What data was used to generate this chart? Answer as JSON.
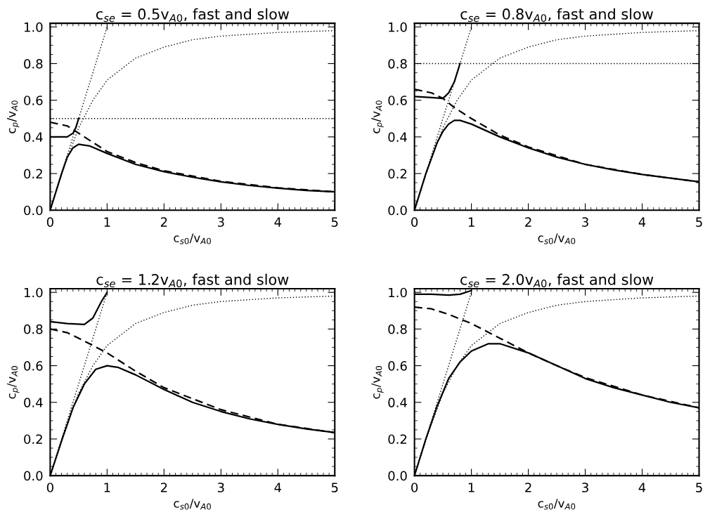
{
  "chart_data": [
    {
      "type": "line",
      "title": "c$_{se}$ = 0.5v$_{A0}$, fast and slow",
      "xlabel": "c$_{s0}$/v$_{A0}$",
      "ylabel": "c$_{p}$/v$_{A0}$",
      "xlim": [
        0,
        5
      ],
      "xticks": [
        0,
        1,
        2,
        3,
        4,
        5
      ],
      "ylim": [
        0,
        1.02
      ],
      "yticks": [
        {
          "value": 0,
          "label": "0.0"
        },
        {
          "value": 0.2,
          "label": "0.2"
        },
        {
          "value": 0.4,
          "label": "0.4"
        },
        {
          "value": 0.6,
          "label": "0.6"
        },
        {
          "value": 0.8,
          "label": "0.8"
        },
        {
          "value": 1,
          "label": "1.0"
        }
      ],
      "grid": false,
      "marker": "none",
      "ref_lines": [
        {
          "axis": "y",
          "value": 0.5,
          "color": "#000000",
          "line_style": "dotted"
        }
      ],
      "series": [
        {
          "color": "#000000",
          "line_style": "solid",
          "x": [
            0,
            0.3,
            0.4,
            0.45,
            0.5
          ],
          "values": [
            0.4,
            0.4,
            0.42,
            0.45,
            0.5
          ]
        },
        {
          "color": "#000000",
          "line_style": "solid",
          "x": [
            0,
            0.1,
            0.2,
            0.3,
            0.4,
            0.5,
            0.7,
            1,
            1.5,
            2,
            2.5,
            3,
            3.5,
            4,
            4.5,
            5
          ],
          "values": [
            0,
            0.1,
            0.2,
            0.29,
            0.34,
            0.36,
            0.35,
            0.31,
            0.25,
            0.21,
            0.18,
            0.155,
            0.135,
            0.12,
            0.108,
            0.1
          ]
        },
        {
          "color": "#000000",
          "line_style": "dashed",
          "x": [
            0,
            0.3,
            0.5,
            0.7,
            1,
            1.5,
            2,
            3,
            4,
            5
          ],
          "values": [
            0.48,
            0.46,
            0.42,
            0.38,
            0.32,
            0.26,
            0.215,
            0.158,
            0.122,
            0.1
          ]
        },
        {
          "color": "#000000",
          "line_style": "dotted",
          "x": [
            0,
            1
          ],
          "values": [
            0,
            1
          ]
        },
        {
          "color": "#000000",
          "line_style": "dotted",
          "x": [
            0,
            0.25,
            0.5,
            0.75,
            1,
            1.5,
            2,
            2.5,
            3,
            4,
            5
          ],
          "values": [
            0,
            0.24,
            0.45,
            0.6,
            0.71,
            0.83,
            0.89,
            0.93,
            0.95,
            0.97,
            0.98
          ]
        }
      ]
    },
    {
      "type": "line",
      "title": "c$_{se}$ = 0.8v$_{A0}$, fast and slow",
      "xlabel": "c$_{s0}$/v$_{A0}$",
      "ylabel": "c$_{p}$/v$_{A0}$",
      "xlim": [
        0,
        5
      ],
      "xticks": [
        0,
        1,
        2,
        3,
        4,
        5
      ],
      "ylim": [
        0,
        1.02
      ],
      "yticks": [
        {
          "value": 0,
          "label": "0.0"
        },
        {
          "value": 0.2,
          "label": "0.2"
        },
        {
          "value": 0.4,
          "label": "0.4"
        },
        {
          "value": 0.6,
          "label": "0.6"
        },
        {
          "value": 0.8,
          "label": "0.8"
        },
        {
          "value": 1,
          "label": "1.0"
        }
      ],
      "grid": false,
      "marker": "none",
      "ref_lines": [
        {
          "axis": "y",
          "value": 0.8,
          "color": "#000000",
          "line_style": "dotted"
        }
      ],
      "series": [
        {
          "color": "#000000",
          "line_style": "solid",
          "x": [
            0,
            0.3,
            0.5,
            0.6,
            0.7,
            0.8
          ],
          "values": [
            0.62,
            0.615,
            0.61,
            0.64,
            0.7,
            0.8
          ]
        },
        {
          "color": "#000000",
          "line_style": "solid",
          "x": [
            0,
            0.2,
            0.4,
            0.5,
            0.6,
            0.7,
            0.8,
            1,
            1.5,
            2,
            2.5,
            3,
            3.5,
            4,
            4.5,
            5
          ],
          "values": [
            0,
            0.2,
            0.37,
            0.43,
            0.47,
            0.49,
            0.49,
            0.47,
            0.4,
            0.34,
            0.29,
            0.25,
            0.22,
            0.195,
            0.175,
            0.155
          ]
        },
        {
          "color": "#000000",
          "line_style": "dashed",
          "x": [
            0,
            0.3,
            0.5,
            0.7,
            1,
            1.5,
            2,
            3,
            4,
            5
          ],
          "values": [
            0.66,
            0.64,
            0.61,
            0.56,
            0.5,
            0.41,
            0.345,
            0.25,
            0.195,
            0.155
          ]
        },
        {
          "color": "#000000",
          "line_style": "dotted",
          "x": [
            0,
            1
          ],
          "values": [
            0,
            1
          ]
        },
        {
          "color": "#000000",
          "line_style": "dotted",
          "x": [
            0,
            0.25,
            0.5,
            0.75,
            1,
            1.5,
            2,
            2.5,
            3,
            4,
            5
          ],
          "values": [
            0,
            0.24,
            0.45,
            0.6,
            0.71,
            0.83,
            0.89,
            0.93,
            0.95,
            0.97,
            0.98
          ]
        }
      ]
    },
    {
      "type": "line",
      "title": "c$_{se}$ = 1.2v$_{A0}$, fast and slow",
      "xlabel": "c$_{s0}$/v$_{A0}$",
      "ylabel": "c$_{p}$/v$_{A0}$",
      "xlim": [
        0,
        5
      ],
      "xticks": [
        0,
        1,
        2,
        3,
        4,
        5
      ],
      "ylim": [
        0,
        1.02
      ],
      "yticks": [
        {
          "value": 0,
          "label": "0.0"
        },
        {
          "value": 0.2,
          "label": "0.2"
        },
        {
          "value": 0.4,
          "label": "0.4"
        },
        {
          "value": 0.6,
          "label": "0.6"
        },
        {
          "value": 0.8,
          "label": "0.8"
        },
        {
          "value": 1,
          "label": "1.0"
        }
      ],
      "grid": false,
      "marker": "none",
      "series": [
        {
          "color": "#000000",
          "line_style": "solid",
          "x": [
            0,
            0.3,
            0.6,
            0.75,
            0.9,
            1
          ],
          "values": [
            0.84,
            0.83,
            0.825,
            0.86,
            0.95,
            1
          ]
        },
        {
          "color": "#000000",
          "line_style": "solid",
          "x": [
            0,
            0.2,
            0.4,
            0.6,
            0.8,
            1,
            1.2,
            1.5,
            2,
            2.5,
            3,
            3.5,
            4,
            4.5,
            5
          ],
          "values": [
            0,
            0.19,
            0.37,
            0.5,
            0.58,
            0.6,
            0.59,
            0.55,
            0.47,
            0.4,
            0.35,
            0.31,
            0.28,
            0.255,
            0.235
          ]
        },
        {
          "color": "#000000",
          "line_style": "dashed",
          "x": [
            0,
            0.3,
            0.5,
            0.75,
            1,
            1.5,
            2,
            3,
            4,
            5
          ],
          "values": [
            0.8,
            0.78,
            0.75,
            0.71,
            0.67,
            0.57,
            0.48,
            0.36,
            0.28,
            0.235
          ]
        },
        {
          "color": "#000000",
          "line_style": "dotted",
          "x": [
            0,
            1
          ],
          "values": [
            0,
            1
          ]
        },
        {
          "color": "#000000",
          "line_style": "dotted",
          "x": [
            0,
            0.25,
            0.5,
            0.75,
            1,
            1.5,
            2,
            2.5,
            3,
            4,
            5
          ],
          "values": [
            0,
            0.24,
            0.45,
            0.6,
            0.71,
            0.83,
            0.89,
            0.93,
            0.95,
            0.97,
            0.98
          ]
        }
      ]
    },
    {
      "type": "line",
      "title": "c$_{se}$ = 2.0v$_{A0}$, fast and slow",
      "xlabel": "c$_{s0}$/v$_{A0}$",
      "ylabel": "c$_{p}$/v$_{A0}$",
      "xlim": [
        0,
        5
      ],
      "xticks": [
        0,
        1,
        2,
        3,
        4,
        5
      ],
      "ylim": [
        0,
        1.02
      ],
      "yticks": [
        {
          "value": 0,
          "label": "0.0"
        },
        {
          "value": 0.2,
          "label": "0.2"
        },
        {
          "value": 0.4,
          "label": "0.4"
        },
        {
          "value": 0.6,
          "label": "0.6"
        },
        {
          "value": 0.8,
          "label": "0.8"
        },
        {
          "value": 1,
          "label": "1.0"
        }
      ],
      "grid": false,
      "marker": "none",
      "series": [
        {
          "color": "#000000",
          "line_style": "solid",
          "x": [
            0,
            0.3,
            0.6,
            0.8,
            1
          ],
          "values": [
            0.99,
            0.99,
            0.985,
            0.99,
            1.01
          ]
        },
        {
          "color": "#000000",
          "line_style": "solid",
          "x": [
            0,
            0.2,
            0.4,
            0.6,
            0.8,
            1,
            1.3,
            1.5,
            2,
            2.5,
            3,
            3.5,
            4,
            4.5,
            5
          ],
          "values": [
            0,
            0.2,
            0.38,
            0.53,
            0.62,
            0.68,
            0.72,
            0.72,
            0.67,
            0.6,
            0.53,
            0.48,
            0.44,
            0.4,
            0.37
          ]
        },
        {
          "color": "#000000",
          "line_style": "dashed",
          "x": [
            0,
            0.3,
            0.6,
            1,
            1.25,
            1.5,
            2,
            2.5,
            3,
            4,
            5
          ],
          "values": [
            0.92,
            0.91,
            0.88,
            0.83,
            0.79,
            0.75,
            0.67,
            0.6,
            0.535,
            0.44,
            0.37
          ]
        },
        {
          "color": "#000000",
          "line_style": "dotted",
          "x": [
            0,
            1
          ],
          "values": [
            0,
            1
          ]
        },
        {
          "color": "#000000",
          "line_style": "dotted",
          "x": [
            0,
            0.25,
            0.5,
            0.75,
            1,
            1.5,
            2,
            2.5,
            3,
            4,
            5
          ],
          "values": [
            0,
            0.24,
            0.45,
            0.6,
            0.71,
            0.83,
            0.89,
            0.93,
            0.95,
            0.97,
            0.98
          ]
        }
      ]
    }
  ]
}
